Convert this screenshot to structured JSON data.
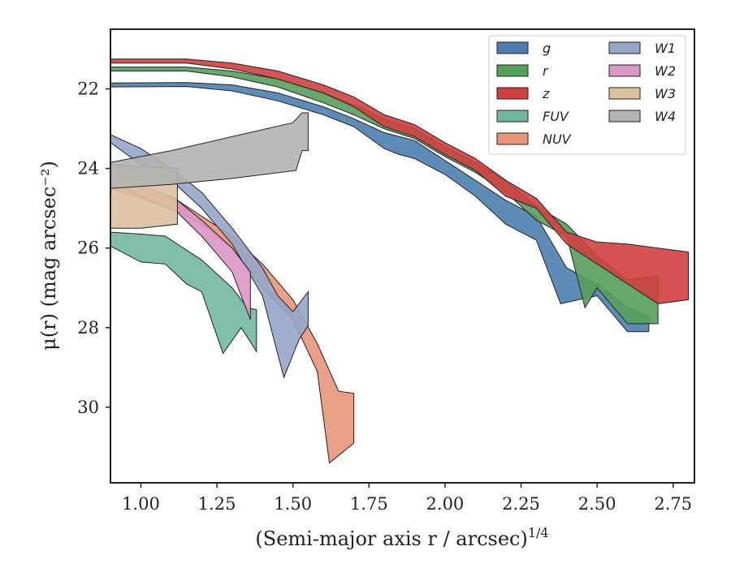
{
  "chart_data": {
    "type": "area",
    "xlabel": "(Semi-major axis r / arcsec)",
    "xlabel_superscript": "1/4",
    "ylabel": "μ(r) (mag arcsec⁻²)",
    "xlim": [
      0.9,
      2.82
    ],
    "ylim": [
      31.9,
      20.5
    ],
    "y_inverted": true,
    "xticks": [
      "1.00",
      "1.25",
      "1.50",
      "1.75",
      "2.00",
      "2.25",
      "2.50",
      "2.75"
    ],
    "yticks": [
      "22",
      "24",
      "26",
      "28",
      "30"
    ],
    "grid": false,
    "legend_position": "top-right",
    "legend_columns": 2,
    "series": [
      {
        "name": "g",
        "color": "#4c7fb0",
        "upper": [
          [
            0.9,
            21.85
          ],
          [
            1.15,
            21.84
          ],
          [
            1.3,
            21.9
          ],
          [
            1.45,
            22.1
          ],
          [
            1.6,
            22.45
          ],
          [
            1.7,
            22.75
          ],
          [
            1.8,
            23.1
          ],
          [
            1.85,
            23.2
          ],
          [
            1.9,
            23.3
          ],
          [
            2.0,
            23.8
          ],
          [
            2.1,
            24.3
          ],
          [
            2.2,
            24.8
          ],
          [
            2.3,
            25.2
          ],
          [
            2.4,
            26.5
          ],
          [
            2.5,
            26.9
          ],
          [
            2.6,
            27.5
          ],
          [
            2.67,
            27.7
          ]
        ],
        "lower": [
          [
            0.9,
            21.95
          ],
          [
            1.15,
            21.94
          ],
          [
            1.3,
            22.05
          ],
          [
            1.45,
            22.3
          ],
          [
            1.6,
            22.65
          ],
          [
            1.7,
            22.95
          ],
          [
            1.8,
            23.5
          ],
          [
            1.85,
            23.65
          ],
          [
            1.9,
            23.75
          ],
          [
            2.0,
            24.15
          ],
          [
            2.1,
            24.7
          ],
          [
            2.2,
            25.4
          ],
          [
            2.3,
            25.8
          ],
          [
            2.38,
            27.4
          ],
          [
            2.5,
            27.2
          ],
          [
            2.6,
            28.1
          ],
          [
            2.67,
            28.1
          ]
        ]
      },
      {
        "name": "r",
        "color": "#56a05c",
        "upper": [
          [
            0.9,
            21.45
          ],
          [
            1.15,
            21.45
          ],
          [
            1.3,
            21.55
          ],
          [
            1.45,
            21.75
          ],
          [
            1.6,
            22.1
          ],
          [
            1.7,
            22.4
          ],
          [
            1.8,
            22.75
          ],
          [
            1.9,
            23.0
          ],
          [
            2.0,
            23.45
          ],
          [
            2.1,
            23.85
          ],
          [
            2.2,
            24.3
          ],
          [
            2.3,
            24.95
          ],
          [
            2.4,
            25.4
          ],
          [
            2.5,
            26.2
          ],
          [
            2.6,
            26.8
          ],
          [
            2.7,
            26.7
          ]
        ],
        "lower": [
          [
            0.9,
            21.55
          ],
          [
            1.15,
            21.55
          ],
          [
            1.3,
            21.7
          ],
          [
            1.45,
            21.95
          ],
          [
            1.6,
            22.35
          ],
          [
            1.7,
            22.65
          ],
          [
            1.8,
            23.0
          ],
          [
            1.9,
            23.25
          ],
          [
            2.0,
            23.7
          ],
          [
            2.1,
            24.1
          ],
          [
            2.2,
            24.6
          ],
          [
            2.3,
            25.3
          ],
          [
            2.4,
            25.7
          ],
          [
            2.46,
            27.5
          ],
          [
            2.5,
            27.0
          ],
          [
            2.6,
            27.9
          ],
          [
            2.7,
            27.9
          ]
        ]
      },
      {
        "name": "z",
        "color": "#d04040",
        "upper": [
          [
            0.9,
            21.25
          ],
          [
            1.15,
            21.25
          ],
          [
            1.3,
            21.35
          ],
          [
            1.45,
            21.55
          ],
          [
            1.6,
            21.9
          ],
          [
            1.7,
            22.2
          ],
          [
            1.8,
            22.65
          ],
          [
            1.9,
            22.9
          ],
          [
            2.0,
            23.35
          ],
          [
            2.1,
            23.75
          ],
          [
            2.2,
            24.3
          ],
          [
            2.3,
            24.75
          ],
          [
            2.4,
            25.6
          ],
          [
            2.5,
            25.85
          ],
          [
            2.6,
            25.9
          ],
          [
            2.7,
            26.0
          ],
          [
            2.8,
            26.1
          ]
        ],
        "lower": [
          [
            0.9,
            21.35
          ],
          [
            1.15,
            21.35
          ],
          [
            1.3,
            21.5
          ],
          [
            1.45,
            21.75
          ],
          [
            1.6,
            22.1
          ],
          [
            1.7,
            22.45
          ],
          [
            1.8,
            22.95
          ],
          [
            1.9,
            23.2
          ],
          [
            2.0,
            23.65
          ],
          [
            2.1,
            24.05
          ],
          [
            2.2,
            24.7
          ],
          [
            2.3,
            25.0
          ],
          [
            2.4,
            25.9
          ],
          [
            2.5,
            26.4
          ],
          [
            2.6,
            26.9
          ],
          [
            2.7,
            27.4
          ],
          [
            2.8,
            27.3
          ]
        ]
      },
      {
        "name": "FUV",
        "color": "#72b8a0",
        "upper": [
          [
            0.9,
            25.6
          ],
          [
            1.0,
            25.65
          ],
          [
            1.08,
            25.7
          ],
          [
            1.2,
            26.3
          ],
          [
            1.3,
            27.0
          ],
          [
            1.35,
            27.5
          ],
          [
            1.38,
            27.55
          ]
        ],
        "lower": [
          [
            0.9,
            25.95
          ],
          [
            1.0,
            26.35
          ],
          [
            1.08,
            26.4
          ],
          [
            1.15,
            26.9
          ],
          [
            1.2,
            27.1
          ],
          [
            1.27,
            28.65
          ],
          [
            1.33,
            28.0
          ],
          [
            1.38,
            28.6
          ]
        ]
      },
      {
        "name": "NUV",
        "color": "#e8957a",
        "upper": [
          [
            0.9,
            24.3
          ],
          [
            1.1,
            24.7
          ],
          [
            1.2,
            25.2
          ],
          [
            1.3,
            25.7
          ],
          [
            1.4,
            26.4
          ],
          [
            1.5,
            27.3
          ],
          [
            1.58,
            28.4
          ],
          [
            1.65,
            29.6
          ],
          [
            1.7,
            29.65
          ]
        ],
        "lower": [
          [
            0.9,
            24.5
          ],
          [
            1.1,
            25.0
          ],
          [
            1.2,
            25.4
          ],
          [
            1.3,
            26.0
          ],
          [
            1.4,
            27.0
          ],
          [
            1.5,
            27.8
          ],
          [
            1.58,
            29.1
          ],
          [
            1.62,
            31.4
          ],
          [
            1.7,
            30.9
          ]
        ]
      },
      {
        "name": "W1",
        "color": "#95a6c8",
        "upper": [
          [
            0.9,
            23.15
          ],
          [
            1.0,
            23.5
          ],
          [
            1.1,
            24.0
          ],
          [
            1.2,
            24.6
          ],
          [
            1.3,
            25.5
          ],
          [
            1.4,
            26.5
          ],
          [
            1.45,
            27.2
          ],
          [
            1.5,
            27.6
          ],
          [
            1.55,
            27.1
          ]
        ],
        "lower": [
          [
            0.9,
            23.35
          ],
          [
            1.0,
            23.9
          ],
          [
            1.1,
            24.3
          ],
          [
            1.2,
            25.0
          ],
          [
            1.3,
            25.9
          ],
          [
            1.4,
            27.2
          ],
          [
            1.47,
            29.25
          ],
          [
            1.52,
            28.3
          ],
          [
            1.55,
            27.95
          ]
        ]
      },
      {
        "name": "W2",
        "color": "#dc97c7",
        "upper": [
          [
            0.9,
            24.05
          ],
          [
            1.0,
            24.4
          ],
          [
            1.12,
            24.8
          ],
          [
            1.2,
            25.3
          ],
          [
            1.3,
            26.0
          ],
          [
            1.36,
            26.6
          ]
        ],
        "lower": [
          [
            0.9,
            24.3
          ],
          [
            1.0,
            24.7
          ],
          [
            1.12,
            25.1
          ],
          [
            1.2,
            25.7
          ],
          [
            1.3,
            26.6
          ],
          [
            1.36,
            27.8
          ]
        ]
      },
      {
        "name": "W3",
        "color": "#dcc0a0",
        "upper": [
          [
            0.9,
            23.9
          ],
          [
            1.0,
            23.95
          ],
          [
            1.12,
            24.0
          ]
        ],
        "lower": [
          [
            0.9,
            25.5
          ],
          [
            1.0,
            25.5
          ],
          [
            1.12,
            25.4
          ]
        ]
      },
      {
        "name": "W4",
        "color": "#b3b3b3",
        "upper": [
          [
            0.9,
            23.85
          ],
          [
            1.1,
            23.55
          ],
          [
            1.3,
            23.2
          ],
          [
            1.5,
            22.85
          ],
          [
            1.53,
            22.6
          ],
          [
            1.55,
            22.6
          ]
        ],
        "lower": [
          [
            0.9,
            24.5
          ],
          [
            1.1,
            24.4
          ],
          [
            1.3,
            24.25
          ],
          [
            1.51,
            24.05
          ],
          [
            1.53,
            23.55
          ],
          [
            1.55,
            23.55
          ]
        ]
      }
    ]
  }
}
